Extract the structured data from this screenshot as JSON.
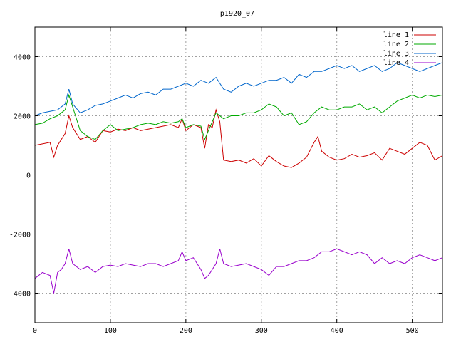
{
  "chart_data": {
    "type": "line",
    "title": "p1920_07",
    "xlim": [
      0,
      540
    ],
    "ylim": [
      -5000,
      5000
    ],
    "x_ticks": [
      0,
      100,
      200,
      300,
      400,
      500
    ],
    "y_ticks": [
      -4000,
      -2000,
      0,
      2000,
      4000
    ],
    "grid": true,
    "legend_placement": "top-right",
    "series": [
      {
        "name": "line 1",
        "color": "#cc0000",
        "x": [
          0,
          10,
          20,
          25,
          30,
          35,
          40,
          45,
          50,
          55,
          60,
          70,
          80,
          90,
          100,
          110,
          120,
          130,
          140,
          150,
          160,
          170,
          180,
          190,
          195,
          200,
          210,
          220,
          225,
          230,
          235,
          240,
          245,
          250,
          260,
          270,
          280,
          290,
          300,
          310,
          320,
          330,
          340,
          350,
          360,
          370,
          375,
          380,
          390,
          400,
          410,
          420,
          430,
          440,
          450,
          460,
          470,
          480,
          490,
          500,
          510,
          520,
          530,
          540
        ],
        "y": [
          1000,
          1050,
          1100,
          600,
          1000,
          1200,
          1400,
          2000,
          1600,
          1400,
          1200,
          1300,
          1100,
          1500,
          1450,
          1550,
          1500,
          1600,
          1500,
          1550,
          1600,
          1650,
          1700,
          1600,
          1900,
          1500,
          1700,
          1600,
          900,
          1700,
          1600,
          2200,
          1800,
          500,
          450,
          500,
          400,
          550,
          300,
          650,
          450,
          300,
          250,
          400,
          600,
          1100,
          1300,
          800,
          600,
          500,
          550,
          700,
          600,
          650,
          750,
          500,
          900,
          800,
          700,
          900,
          1100,
          1000,
          500,
          650
        ]
      },
      {
        "name": "line 2",
        "color": "#00aa00",
        "x": [
          0,
          10,
          20,
          30,
          40,
          45,
          50,
          60,
          70,
          80,
          90,
          100,
          110,
          120,
          130,
          140,
          150,
          160,
          170,
          180,
          190,
          195,
          200,
          210,
          220,
          225,
          230,
          240,
          250,
          260,
          270,
          280,
          290,
          300,
          310,
          320,
          330,
          340,
          350,
          360,
          370,
          380,
          390,
          400,
          410,
          420,
          430,
          440,
          450,
          460,
          470,
          480,
          490,
          500,
          510,
          520,
          530,
          540
        ],
        "y": [
          1700,
          1750,
          1900,
          2000,
          2200,
          2700,
          2300,
          1500,
          1300,
          1200,
          1500,
          1700,
          1500,
          1550,
          1600,
          1700,
          1750,
          1700,
          1800,
          1750,
          1800,
          1900,
          1600,
          1700,
          1650,
          1200,
          1500,
          2100,
          1900,
          2000,
          2000,
          2100,
          2100,
          2200,
          2400,
          2300,
          2000,
          2100,
          1700,
          1800,
          2100,
          2300,
          2200,
          2200,
          2300,
          2300,
          2400,
          2200,
          2300,
          2100,
          2300,
          2500,
          2600,
          2700,
          2600,
          2700,
          2650,
          2700
        ]
      },
      {
        "name": "line 3",
        "color": "#0066cc",
        "x": [
          0,
          10,
          20,
          30,
          40,
          45,
          50,
          60,
          70,
          80,
          90,
          100,
          110,
          120,
          130,
          140,
          150,
          160,
          170,
          180,
          190,
          200,
          210,
          220,
          230,
          240,
          250,
          260,
          270,
          280,
          290,
          300,
          310,
          320,
          330,
          340,
          350,
          360,
          370,
          380,
          390,
          400,
          410,
          420,
          430,
          440,
          450,
          460,
          470,
          480,
          490,
          500,
          510,
          520,
          530,
          540
        ],
        "y": [
          2000,
          2100,
          2150,
          2200,
          2400,
          2900,
          2400,
          2100,
          2200,
          2350,
          2400,
          2500,
          2600,
          2700,
          2600,
          2750,
          2800,
          2700,
          2900,
          2900,
          3000,
          3100,
          3000,
          3200,
          3100,
          3300,
          2900,
          2800,
          3000,
          3100,
          3000,
          3100,
          3200,
          3200,
          3300,
          3100,
          3400,
          3300,
          3500,
          3500,
          3600,
          3700,
          3600,
          3700,
          3500,
          3600,
          3700,
          3500,
          3600,
          3800,
          3700,
          3600,
          3500,
          3600,
          3700,
          3800
        ]
      },
      {
        "name": "line 4",
        "color": "#9900cc",
        "x": [
          0,
          10,
          20,
          25,
          30,
          35,
          40,
          45,
          50,
          60,
          70,
          80,
          90,
          100,
          110,
          120,
          130,
          140,
          150,
          160,
          170,
          180,
          190,
          195,
          200,
          210,
          220,
          225,
          230,
          235,
          240,
          245,
          250,
          260,
          270,
          280,
          290,
          300,
          310,
          320,
          330,
          340,
          350,
          360,
          370,
          380,
          390,
          400,
          410,
          420,
          430,
          440,
          450,
          460,
          470,
          480,
          490,
          500,
          510,
          520,
          530,
          540
        ],
        "y": [
          -3500,
          -3300,
          -3400,
          -4000,
          -3300,
          -3200,
          -3000,
          -2500,
          -3000,
          -3200,
          -3100,
          -3300,
          -3100,
          -3050,
          -3100,
          -3000,
          -3050,
          -3100,
          -3000,
          -3000,
          -3100,
          -3000,
          -2900,
          -2600,
          -2900,
          -2800,
          -3200,
          -3500,
          -3400,
          -3200,
          -3000,
          -2500,
          -3000,
          -3100,
          -3050,
          -3000,
          -3100,
          -3200,
          -3400,
          -3100,
          -3100,
          -3000,
          -2900,
          -2900,
          -2800,
          -2600,
          -2600,
          -2500,
          -2600,
          -2700,
          -2600,
          -2700,
          -3000,
          -2800,
          -3000,
          -2900,
          -3000,
          -2800,
          -2700,
          -2800,
          -2900,
          -2800
        ]
      }
    ]
  }
}
